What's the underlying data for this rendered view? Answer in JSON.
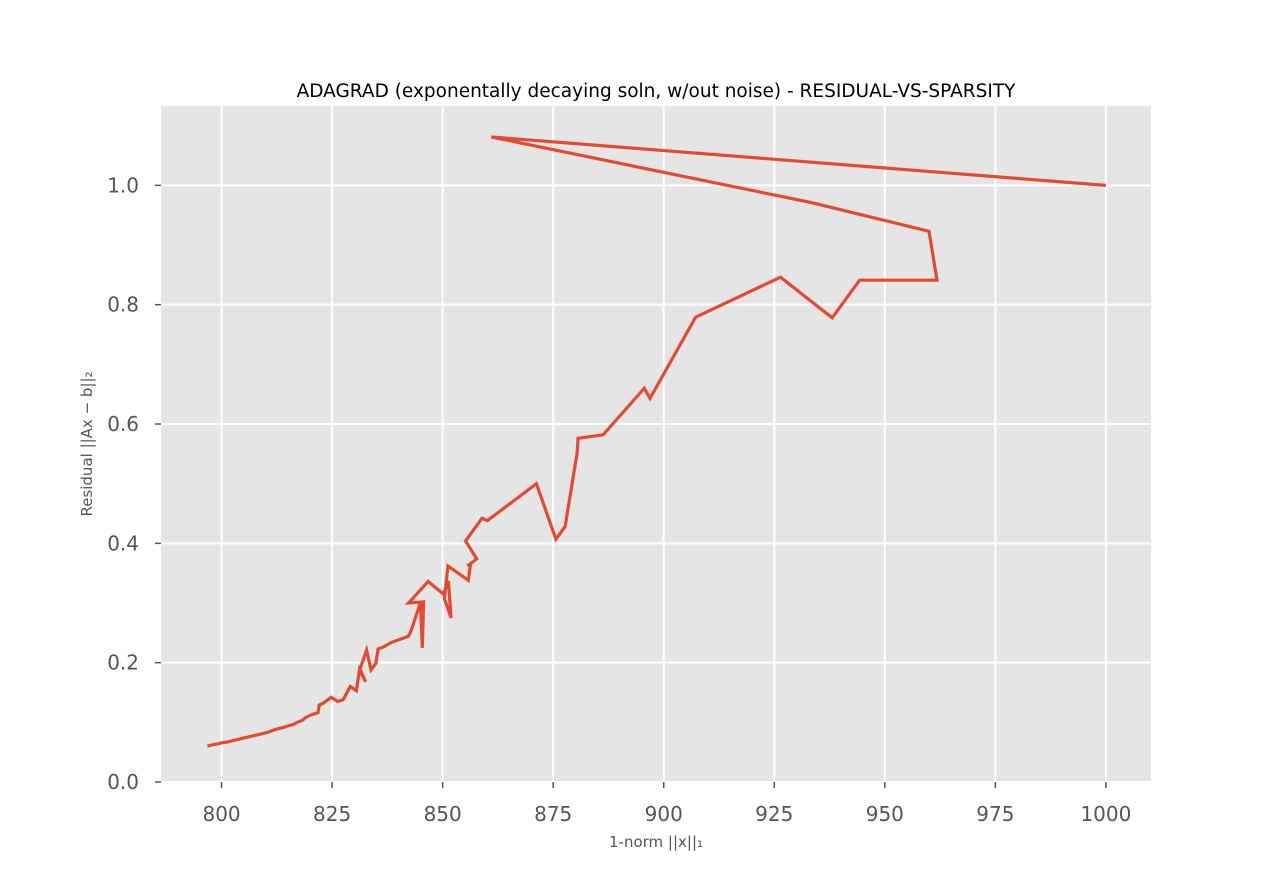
{
  "chart_data": {
    "type": "line",
    "title": "ADAGRAD (exponentally decaying soln, w/out noise) - RESIDUAL-VS-SPARSITY",
    "xlabel": "1-norm ||x||₁",
    "ylabel": "Residual ||Ax − b||₂",
    "xlim": [
      786.3,
      1010.2
    ],
    "ylim": [
      0.0,
      1.133
    ],
    "xticks": [
      800,
      825,
      850,
      875,
      900,
      925,
      950,
      975,
      1000
    ],
    "xtick_labels": [
      "800",
      "825",
      "850",
      "875",
      "900",
      "925",
      "950",
      "975",
      "1000"
    ],
    "yticks": [
      0.0,
      0.2,
      0.4,
      0.6,
      0.8,
      1.0
    ],
    "ytick_labels": [
      "0.0",
      "0.2",
      "0.4",
      "0.6",
      "0.8",
      "1.0"
    ],
    "grid": true,
    "colors": {
      "line": "#E24A33",
      "plot_background": "#E5E5E5",
      "grid": "#FFFFFF",
      "tick_label": "#555555"
    },
    "series": [
      {
        "name": "residual-vs-sparsity",
        "x": [
          1000.0,
          861.0,
          933.5,
          960.0,
          961.8,
          944.3,
          938.1,
          926.4,
          907.2,
          896.9,
          895.6,
          886.3,
          880.6,
          880.4,
          877.7,
          875.6,
          871.2,
          860.1,
          858.9,
          855.2,
          857.7,
          855.6,
          856.3,
          855.8,
          851.2,
          850.4,
          851.9,
          851.3,
          850.2,
          846.7,
          843.9,
          842.3,
          845.7,
          845.4,
          845.0,
          842.8,
          842.2,
          838.4,
          836.5,
          835.4,
          834.9,
          833.8,
          832.8,
          831.3,
          832.6,
          831.2,
          830.5,
          829.1,
          827.5,
          826.3,
          824.8,
          823.0,
          822.1,
          821.8,
          820.4,
          819.0,
          818.2,
          817.1,
          816.4,
          815.0,
          813.8,
          812.6,
          811.4,
          810.3,
          809.2,
          808.0,
          806.9,
          805.7,
          804.6,
          803.5,
          802.4,
          801.3,
          800.2,
          799.2,
          798.4,
          797.8,
          797.3,
          796.8
        ],
        "y": [
          1.0,
          1.081,
          0.971,
          0.923,
          0.841,
          0.841,
          0.778,
          0.846,
          0.779,
          0.643,
          0.66,
          0.582,
          0.576,
          0.551,
          0.428,
          0.407,
          0.5,
          0.438,
          0.442,
          0.404,
          0.374,
          0.362,
          0.365,
          0.338,
          0.362,
          0.307,
          0.275,
          0.337,
          0.315,
          0.336,
          0.313,
          0.3,
          0.302,
          0.225,
          0.301,
          0.252,
          0.244,
          0.234,
          0.226,
          0.223,
          0.199,
          0.188,
          0.221,
          0.189,
          0.168,
          0.188,
          0.153,
          0.16,
          0.138,
          0.135,
          0.142,
          0.132,
          0.129,
          0.116,
          0.113,
          0.108,
          0.103,
          0.1,
          0.097,
          0.094,
          0.091,
          0.089,
          0.086,
          0.083,
          0.081,
          0.079,
          0.077,
          0.075,
          0.073,
          0.071,
          0.069,
          0.067,
          0.066,
          0.064,
          0.063,
          0.062,
          0.061,
          0.06
        ]
      }
    ]
  }
}
